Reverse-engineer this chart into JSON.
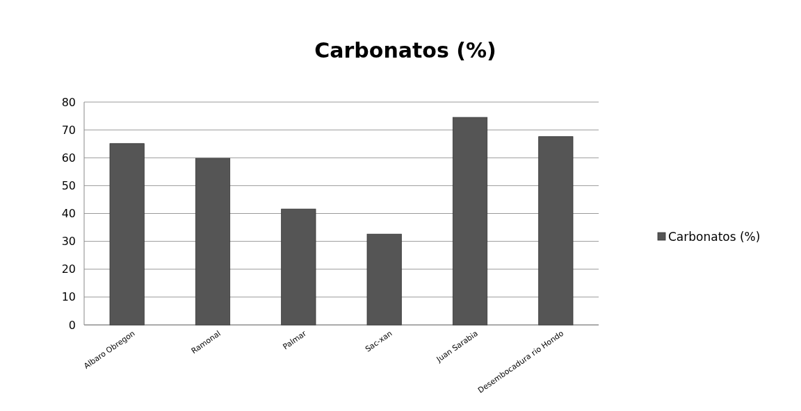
{
  "chart_data": {
    "type": "bar",
    "title": "Carbonatos (%)",
    "categories": [
      "Albaro Obregon",
      "Ramonal",
      "Palmar",
      "Sac-xan",
      "Juan Sarabia",
      "Desembocadura rio Hondo"
    ],
    "series": [
      {
        "name": "Carbonatos (%)",
        "color": "#555555",
        "values": [
          65.1,
          59.8,
          41.6,
          32.6,
          74.5,
          67.6
        ]
      }
    ],
    "ylim": [
      0,
      80
    ],
    "yticks": [
      0,
      10,
      20,
      30,
      40,
      50,
      60,
      70,
      80
    ],
    "grid": "y",
    "legend": "right"
  }
}
